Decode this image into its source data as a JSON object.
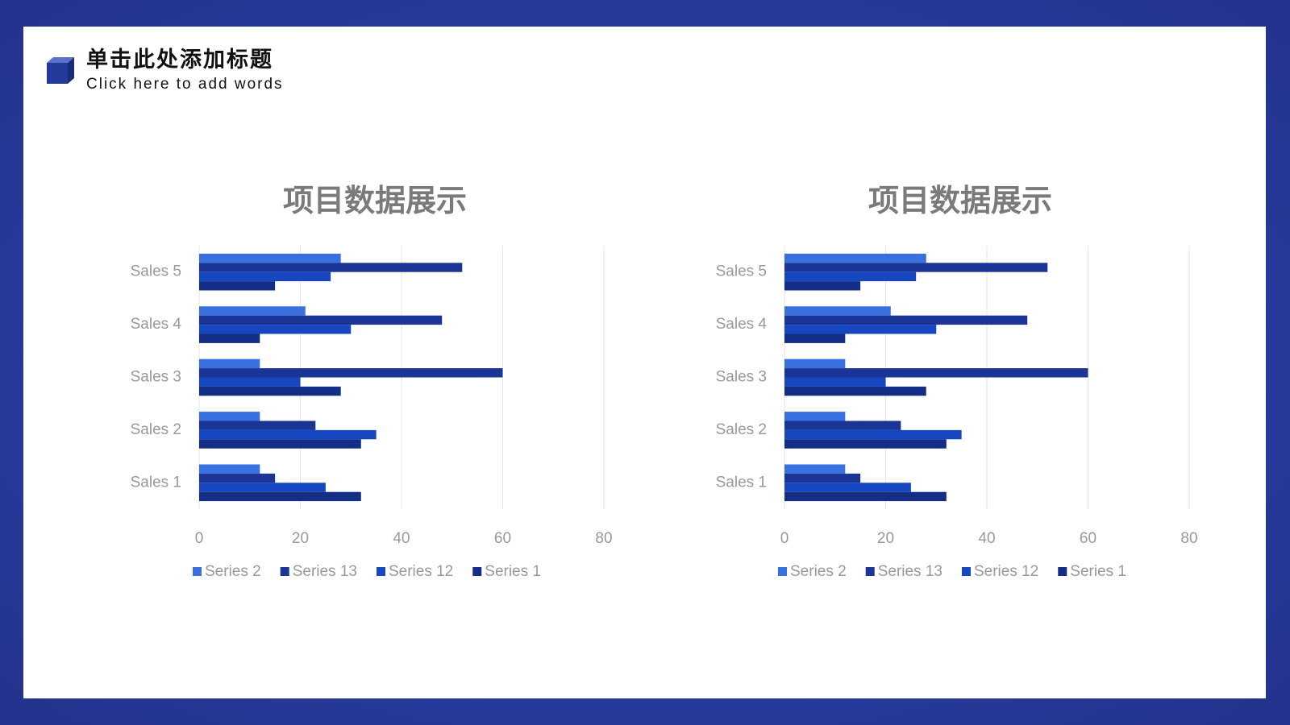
{
  "header": {
    "title": "单击此处添加标题",
    "subtitle": "Click here to add words"
  },
  "chart_data": [
    {
      "type": "bar",
      "orientation": "horizontal",
      "title": "项目数据展示",
      "categories": [
        "Sales 1",
        "Sales 2",
        "Sales 3",
        "Sales 4",
        "Sales 5"
      ],
      "series": [
        {
          "name": "Series 2",
          "color": "#3a6fe0",
          "values": [
            12,
            12,
            12,
            21,
            28
          ]
        },
        {
          "name": "Series 13",
          "color": "#1a3596",
          "values": [
            15,
            23,
            60,
            48,
            52
          ]
        },
        {
          "name": "Series 12",
          "color": "#1646c0",
          "values": [
            25,
            35,
            20,
            30,
            26
          ]
        },
        {
          "name": "Series 1",
          "color": "#142e86",
          "values": [
            32,
            32,
            28,
            12,
            15
          ]
        }
      ],
      "xlim": [
        0,
        80
      ],
      "xticks": [
        0,
        20,
        40,
        60,
        80
      ],
      "grid": true,
      "legend": "bottom"
    },
    {
      "type": "bar",
      "orientation": "horizontal",
      "title": "项目数据展示",
      "categories": [
        "Sales 1",
        "Sales 2",
        "Sales 3",
        "Sales 4",
        "Sales 5"
      ],
      "series": [
        {
          "name": "Series 2",
          "color": "#3a6fe0",
          "values": [
            12,
            12,
            12,
            21,
            28
          ]
        },
        {
          "name": "Series 13",
          "color": "#1a3596",
          "values": [
            15,
            23,
            60,
            48,
            52
          ]
        },
        {
          "name": "Series 12",
          "color": "#1646c0",
          "values": [
            25,
            35,
            20,
            30,
            26
          ]
        },
        {
          "name": "Series 1",
          "color": "#142e86",
          "values": [
            32,
            32,
            28,
            12,
            15
          ]
        }
      ],
      "xlim": [
        0,
        80
      ],
      "xticks": [
        0,
        20,
        40,
        60,
        80
      ],
      "grid": true,
      "legend": "bottom"
    }
  ]
}
